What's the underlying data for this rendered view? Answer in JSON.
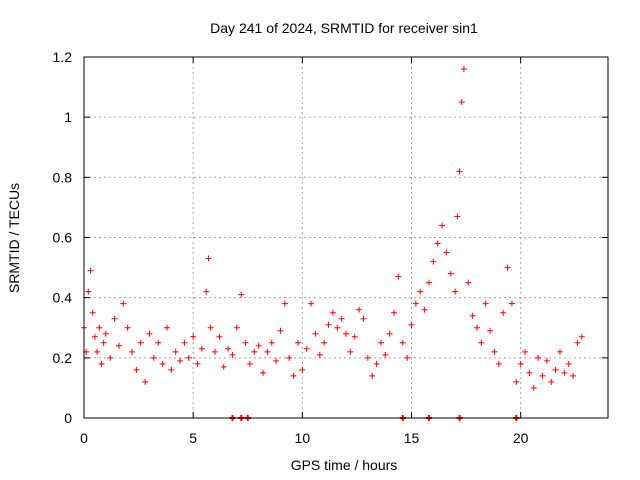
{
  "chart_data": {
    "type": "scatter",
    "title": "Day 241 of 2024, SRMTID for receiver sin1",
    "xlabel": "GPS time / hours",
    "ylabel": "SRMTID / TECUs",
    "xlim": [
      0,
      24
    ],
    "ylim": [
      0,
      1.2
    ],
    "x_ticks": [
      0,
      5,
      10,
      15,
      20
    ],
    "x_tick_labels": [
      "0",
      "5",
      "10",
      "15",
      "20"
    ],
    "y_ticks": [
      0,
      0.2,
      0.4,
      0.6,
      0.8,
      1.0,
      1.2
    ],
    "y_tick_labels": [
      "0",
      "0.2",
      "0.4",
      "0.6",
      "0.8",
      "1",
      "1.2"
    ],
    "grid": true,
    "marker": "plus",
    "color": "#ff0000",
    "series": [
      {
        "name": "SRMTID",
        "x": [
          0.0,
          0.1,
          0.2,
          0.3,
          0.4,
          0.5,
          0.6,
          0.7,
          0.8,
          0.9,
          1.0,
          1.2,
          1.4,
          1.6,
          1.8,
          2.0,
          2.2,
          2.4,
          2.6,
          2.8,
          3.0,
          3.2,
          3.4,
          3.6,
          3.8,
          4.0,
          4.2,
          4.4,
          4.6,
          4.8,
          5.0,
          5.2,
          5.4,
          5.6,
          5.7,
          5.8,
          6.0,
          6.2,
          6.4,
          6.6,
          6.8,
          7.0,
          7.2,
          7.4,
          7.6,
          7.8,
          8.0,
          8.2,
          8.4,
          8.6,
          8.8,
          9.0,
          9.2,
          9.4,
          9.6,
          9.8,
          10.0,
          10.2,
          10.4,
          10.6,
          10.8,
          11.0,
          11.2,
          11.4,
          11.6,
          11.8,
          12.0,
          12.2,
          12.4,
          12.6,
          12.8,
          13.0,
          13.2,
          13.4,
          13.6,
          13.8,
          14.0,
          14.2,
          14.4,
          14.6,
          14.8,
          15.0,
          15.2,
          15.4,
          15.6,
          15.8,
          16.0,
          16.2,
          16.4,
          16.6,
          16.8,
          17.0,
          17.1,
          17.2,
          17.3,
          17.4,
          17.6,
          17.8,
          18.0,
          18.2,
          18.4,
          18.6,
          18.8,
          19.0,
          19.2,
          19.4,
          19.6,
          19.8,
          20.0,
          20.2,
          20.4,
          20.6,
          20.8,
          21.0,
          21.2,
          21.4,
          21.6,
          21.8,
          22.0,
          22.2,
          22.4,
          22.6,
          22.8
        ],
        "y": [
          0.3,
          0.22,
          0.42,
          0.49,
          0.35,
          0.27,
          0.22,
          0.3,
          0.18,
          0.25,
          0.28,
          0.2,
          0.33,
          0.24,
          0.38,
          0.3,
          0.22,
          0.16,
          0.25,
          0.12,
          0.28,
          0.2,
          0.25,
          0.18,
          0.3,
          0.16,
          0.22,
          0.19,
          0.25,
          0.2,
          0.27,
          0.18,
          0.23,
          0.42,
          0.53,
          0.3,
          0.22,
          0.27,
          0.17,
          0.23,
          0.21,
          0.3,
          0.41,
          0.25,
          0.18,
          0.22,
          0.24,
          0.15,
          0.22,
          0.25,
          0.19,
          0.29,
          0.38,
          0.2,
          0.14,
          0.25,
          0.16,
          0.23,
          0.38,
          0.28,
          0.21,
          0.25,
          0.31,
          0.35,
          0.3,
          0.33,
          0.28,
          0.22,
          0.27,
          0.36,
          0.33,
          0.2,
          0.14,
          0.18,
          0.25,
          0.21,
          0.28,
          0.35,
          0.47,
          0.25,
          0.2,
          0.31,
          0.38,
          0.42,
          0.36,
          0.45,
          0.52,
          0.58,
          0.64,
          0.55,
          0.48,
          0.42,
          0.67,
          0.82,
          1.05,
          1.16,
          0.45,
          0.34,
          0.3,
          0.25,
          0.38,
          0.29,
          0.22,
          0.18,
          0.35,
          0.5,
          0.38,
          0.12,
          0.18,
          0.22,
          0.15,
          0.1,
          0.2,
          0.14,
          0.19,
          0.12,
          0.16,
          0.22,
          0.15,
          0.18,
          0.14,
          0.25,
          0.27
        ]
      }
    ],
    "zero_markers_x": [
      6.8,
      7.2,
      7.5,
      14.6,
      15.8,
      17.2,
      19.8
    ]
  }
}
